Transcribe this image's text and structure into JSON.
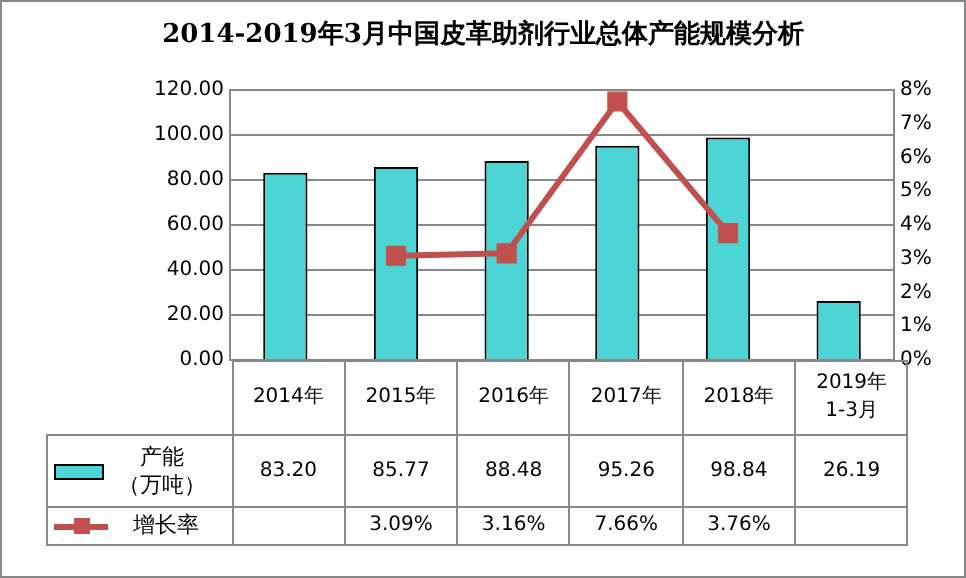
{
  "chart_data": {
    "type": "bar",
    "title": "2014-2019年3月中国皮革助剂行业总体产能规模分析",
    "categories": [
      "2014年",
      "2015年",
      "2016年",
      "2017年",
      "2018年",
      "2019年\n1-3月"
    ],
    "series": [
      {
        "name": "产能（万吨）",
        "color": "#4dd4d4",
        "values": [
          83.2,
          85.77,
          88.48,
          95.26,
          98.84,
          26.19
        ],
        "value_labels": [
          "83.20",
          "85.77",
          "88.48",
          "95.26",
          "98.84",
          "26.19"
        ]
      },
      {
        "name": "增长率",
        "type": "line",
        "axis": "y2",
        "color": "#c0504d",
        "values": [
          null,
          3.09,
          3.16,
          7.66,
          3.76,
          null
        ],
        "value_labels": [
          null,
          "3.09%",
          "3.16%",
          "7.66%",
          "3.76%",
          null
        ]
      }
    ],
    "ylim": [
      0,
      120
    ],
    "yticks": [
      {
        "value": 0,
        "label": "0.00"
      },
      {
        "value": 20,
        "label": "20.00"
      },
      {
        "value": 40,
        "label": "40.00"
      },
      {
        "value": 60,
        "label": "60.00"
      },
      {
        "value": 80,
        "label": "80.00"
      },
      {
        "value": 100,
        "label": "100.00"
      },
      {
        "value": 120,
        "label": "120.00"
      }
    ],
    "y2lim": [
      0,
      8
    ],
    "y2ticks": [
      {
        "value": 0,
        "label": "0%"
      },
      {
        "value": 1,
        "label": "1%"
      },
      {
        "value": 2,
        "label": "2%"
      },
      {
        "value": 3,
        "label": "3%"
      },
      {
        "value": 4,
        "label": "4%"
      },
      {
        "value": 5,
        "label": "5%"
      },
      {
        "value": 6,
        "label": "6%"
      },
      {
        "value": 7,
        "label": "7%"
      },
      {
        "value": 8,
        "label": "8%"
      }
    ],
    "grid": "y",
    "legend": "bottom",
    "marker": "square",
    "data_labels": true
  }
}
